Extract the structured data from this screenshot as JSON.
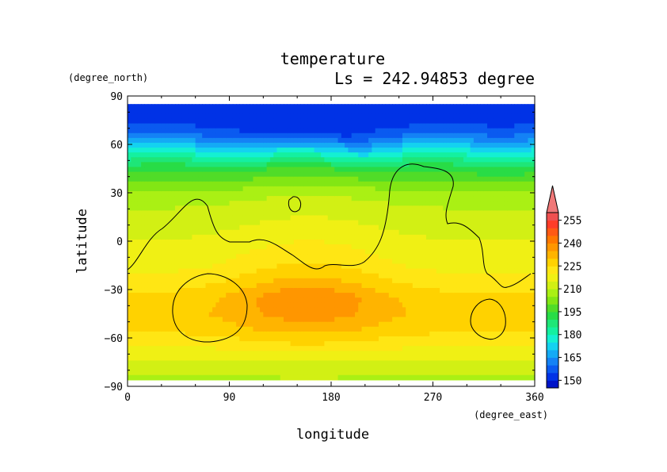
{
  "chart_data": {
    "type": "heatmap",
    "title": "temperature",
    "subtitle": "Ls = 242.94853 degree",
    "xlabel": "longitude",
    "ylabel": "latitude",
    "xunit": "(degree_east)",
    "yunit": "(degree_north)",
    "xlim": [
      0,
      360
    ],
    "ylim": [
      -90,
      90
    ],
    "xticks": [
      "0",
      "90",
      "180",
      "270",
      "360"
    ],
    "yticks": [
      "90",
      "60",
      "30",
      "0",
      "−30",
      "−60",
      "−90"
    ],
    "colorbar": {
      "levels": [
        145,
        150,
        155,
        160,
        165,
        170,
        175,
        180,
        185,
        190,
        195,
        200,
        205,
        210,
        215,
        220,
        225,
        230,
        235,
        240,
        245,
        250,
        255,
        260
      ],
      "colors": [
        "#0014c8",
        "#0032e6",
        "#0a5af0",
        "#1482f5",
        "#14aaf5",
        "#14d2f0",
        "#14f0d2",
        "#14f0a0",
        "#1ee678",
        "#28dc46",
        "#50dc28",
        "#82e614",
        "#aaf014",
        "#d2f014",
        "#f0f014",
        "#ffe614",
        "#ffd200",
        "#ffb400",
        "#ff9600",
        "#ff7800",
        "#ff5a14",
        "#ff3c28",
        "#f05050",
        "#f07878"
      ],
      "tick_labels": [
        "150",
        "165",
        "180",
        "195",
        "210",
        "225",
        "240",
        "255"
      ]
    },
    "contour_note": "topography contour line",
    "temperature_profile": {
      "latitudes": [
        85,
        75,
        65,
        55,
        45,
        35,
        25,
        15,
        5,
        -5,
        -15,
        -25,
        -35,
        -45,
        -55,
        -65,
        -75,
        -85
      ],
      "values_at_lon_0": [
        150,
        152,
        162,
        178,
        192,
        202,
        208,
        212,
        214,
        216,
        218,
        222,
        226,
        228,
        226,
        220,
        214,
        208
      ],
      "values_at_lon_160": [
        150,
        150,
        155,
        175,
        195,
        205,
        212,
        215,
        218,
        222,
        226,
        232,
        240,
        238,
        232,
        224,
        215,
        210
      ]
    }
  }
}
